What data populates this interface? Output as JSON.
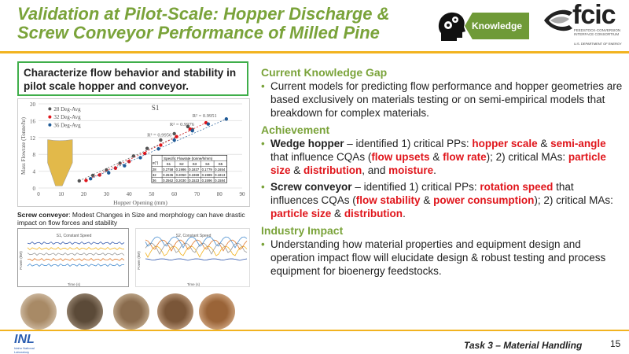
{
  "title": "Validation at Pilot-Scale: Hopper Discharge & Screw Conveyor Performance of Milled Pine",
  "badge": {
    "label": "Knowledge",
    "icon": "head-gears-icon"
  },
  "logo": {
    "name": "fcic",
    "sub": "FEEDSTOCK-CONVERSION INTERFACE CONSORTIUM",
    "doe": "U.S. DEPARTMENT OF ENERGY"
  },
  "objective": "Characterize flow behavior and stability in pilot scale hopper and conveyor.",
  "caption": {
    "bold": "Screw conveyor",
    "rest": ": Modest Changes in Size and morphology can have drastic impact on flow forces and stability"
  },
  "chart_data": {
    "type": "scatter",
    "title": "S1",
    "xlabel": "Hopper Opening (mm)",
    "ylabel": "Mass Flowrate (Tonne/hr)",
    "xlim": [
      0,
      90
    ],
    "ylim": [
      0,
      20
    ],
    "xticks": [
      0,
      10,
      20,
      30,
      40,
      50,
      60,
      70,
      80,
      90
    ],
    "yticks": [
      0,
      4,
      8,
      12,
      16,
      20
    ],
    "series": [
      {
        "name": "28 Deg-Avg",
        "color": "#555555",
        "r2": "R² = 0.9956",
        "points": [
          [
            18,
            1.7
          ],
          [
            24,
            3
          ],
          [
            30,
            4.3
          ],
          [
            36,
            5.9
          ],
          [
            42,
            7.6
          ],
          [
            48,
            9.4
          ],
          [
            54,
            11.4
          ],
          [
            60,
            12.9
          ],
          [
            66,
            14.6
          ],
          [
            68,
            13.9
          ]
        ]
      },
      {
        "name": "32 Deg-Avg",
        "color": "#e0151b",
        "r2": "R² = 0.9976",
        "points": [
          [
            21,
            1.8
          ],
          [
            27,
            3.1
          ],
          [
            34,
            4.7
          ],
          [
            40,
            6.3
          ],
          [
            47,
            8.2
          ],
          [
            54,
            10.2
          ],
          [
            61,
            12.2
          ],
          [
            67,
            14
          ],
          [
            74,
            15.5
          ]
        ]
      },
      {
        "name": "36 Deg-Avg",
        "color": "#1f5a96",
        "r2": "R² = 0.9951",
        "points": [
          [
            23,
            2.2
          ],
          [
            31,
            3.6
          ],
          [
            38,
            5.3
          ],
          [
            45,
            7.2
          ],
          [
            53,
            9.3
          ],
          [
            60,
            11.4
          ],
          [
            68,
            13.6
          ],
          [
            75,
            15.2
          ],
          [
            83,
            16.4
          ]
        ]
      }
    ],
    "table": {
      "title": "Specific Flowrate (tonne/h/mm)",
      "corner": "α(°)",
      "cols": [
        "S1",
        "S2",
        "S3",
        "S4",
        "S5"
      ],
      "rows": [
        [
          "28",
          "0.2758",
          "0.1986",
          "0.1837",
          "0.1779",
          "0.1654"
        ],
        [
          "32",
          "0.2636",
          "0.2050",
          "0.1969",
          "0.1989",
          "0.1813"
        ],
        [
          "36",
          "0.2562",
          "0.2030",
          "0.1523",
          "0.1596",
          "0.1584"
        ]
      ]
    },
    "grid": true,
    "legend": "top-left"
  },
  "mini_charts": [
    {
      "title": "S1, Constant Speed",
      "xlabel": "Time (s)",
      "ylabel": "Power (kW)"
    },
    {
      "title": "S2, Constant Speed",
      "xlabel": "Time (s)",
      "ylabel": "Power (kW)"
    }
  ],
  "right": {
    "gap_h": "Current Knowledge Gap",
    "gap": "Current models for predicting flow performance and hopper geometries are based exclusively on materials testing or on semi-empirical models that breakdown for complex materials.",
    "ach_h": "Achievement",
    "a1": {
      "b": "Wedge hopper",
      "t1": " – identified 1) critical PPs: ",
      "r1": "hopper scale",
      "t2": " & ",
      "r2": "semi-angle",
      "t3": " that influence CQAs (",
      "r3": "flow upsets",
      "t4": " & ",
      "r4": "flow rate",
      "t5": "); 2) critical MAs: ",
      "r5": "particle size",
      "t6": " & ",
      "r6": "distribution",
      "t7": ", and ",
      "r7": "moisture",
      "t8": "."
    },
    "a2": {
      "b": "Screw conveyor",
      "t1": " – identified 1) critical PPs: ",
      "r1": "rotation speed",
      "t2": " that influences CQAs (",
      "r2": "flow stability",
      "t3": " & ",
      "r3": "power consumption",
      "t4": "); 2) critical MAs: ",
      "r4": "particle size",
      "t5": " & ",
      "r5": "distribution",
      "t6": "."
    },
    "imp_h": "Industry Impact",
    "imp": "Understanding how material properties and equipment design and operation impact flow will elucidate design & robust testing and process equipment for bioenergy feedstocks."
  },
  "footer": "Task 3 – Material Handling",
  "page": "15",
  "inl": {
    "name": "INL",
    "sub": "Idaho National Laboratory"
  }
}
